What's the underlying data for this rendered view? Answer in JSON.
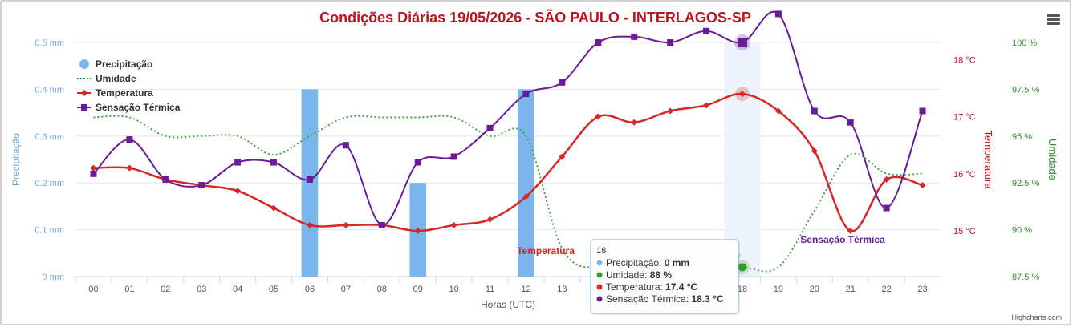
{
  "chart_data": {
    "type": "line",
    "title": "Condições Diárias 19/05/2026 - SÃO PAULO - INTERLAGOS-SP",
    "xlabel": "Horas (UTC)",
    "categories": [
      "00",
      "01",
      "02",
      "03",
      "04",
      "05",
      "06",
      "07",
      "08",
      "09",
      "10",
      "11",
      "12",
      "13",
      "14",
      "15",
      "16",
      "17",
      "18",
      "19",
      "20",
      "21",
      "22",
      "23"
    ],
    "axes": {
      "precipitation": {
        "label": "Precipitação",
        "ticks": [
          "0 mm",
          "0.1 mm",
          "0.2 mm",
          "0.3 mm",
          "0.4 mm",
          "0.5 mm"
        ],
        "range": [
          0,
          0.5
        ]
      },
      "temperature": {
        "label": "Temperatura",
        "ticks": [
          "15 °C",
          "16 °C",
          "17 °C",
          "18 °C"
        ],
        "range": [
          14.2,
          18.3
        ]
      },
      "humidity": {
        "label": "Umidade",
        "ticks": [
          "87.5 %",
          "90 %",
          "92.5 %",
          "95 %",
          "97.5 %",
          "100 %"
        ],
        "range": [
          87.5,
          100
        ]
      }
    },
    "series": [
      {
        "name": "Precipitação",
        "type": "column",
        "axis": "precipitation",
        "values": [
          0,
          0,
          0,
          0,
          0,
          0,
          0.4,
          0,
          0,
          0.2,
          0,
          0,
          0.4,
          0,
          0,
          0,
          0,
          0,
          0,
          0,
          0,
          0,
          0,
          0
        ]
      },
      {
        "name": "Umidade",
        "type": "line",
        "style": "dotted",
        "axis": "humidity",
        "values": [
          96,
          96,
          95,
          95,
          95,
          94,
          95,
          96,
          96,
          96,
          96,
          95,
          95,
          89,
          88,
          89,
          89,
          88,
          88,
          88,
          91,
          94,
          93,
          93
        ]
      },
      {
        "name": "Temperatura",
        "type": "spline",
        "axis": "temperature",
        "values": [
          16.1,
          16.1,
          15.9,
          15.8,
          15.7,
          15.4,
          15.1,
          15.1,
          15.1,
          15.0,
          15.1,
          15.2,
          15.6,
          16.3,
          17.0,
          16.9,
          17.1,
          17.2,
          17.4,
          17.1,
          16.4,
          15.0,
          15.9,
          15.8
        ]
      },
      {
        "name": "Sensação Térmica",
        "type": "spline",
        "axis": "temperature",
        "values": [
          16.0,
          16.6,
          15.9,
          15.8,
          16.2,
          16.2,
          15.9,
          16.5,
          15.1,
          16.2,
          16.3,
          16.8,
          17.4,
          17.6,
          18.3,
          18.4,
          18.3,
          18.5,
          18.3,
          18.8,
          17.1,
          16.9,
          15.4,
          17.1
        ]
      }
    ],
    "colors": {
      "Precipitação": "#7cb5ec",
      "Umidade": "#2ca02c",
      "Temperatura": "#d62728",
      "Sensação Térmica": "#6a1b9a"
    },
    "legend_position": "top-left",
    "annotations": [
      {
        "text": "Temperatura",
        "series": "Temperatura"
      },
      {
        "text": "Umidade",
        "series": "Umidade"
      },
      {
        "text": "Sensação Térmica",
        "series": "Sensação Térmica"
      }
    ],
    "highlight_category": "18",
    "tooltip": {
      "header": "18",
      "rows": [
        {
          "label": "Precipitação",
          "value": "0 mm"
        },
        {
          "label": "Umidade",
          "value": "88 %"
        },
        {
          "label": "Temperatura",
          "value": "17.4 °C"
        },
        {
          "label": "Sensação Térmica",
          "value": "18.3 °C"
        }
      ]
    },
    "credits": "Highcharts.com"
  }
}
